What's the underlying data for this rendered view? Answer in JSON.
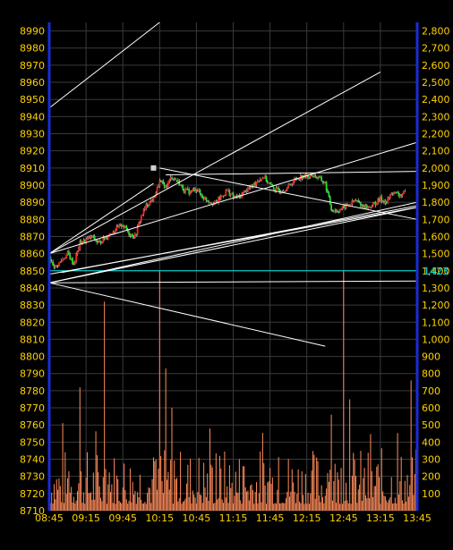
{
  "chart_data": {
    "type": "candlestick+bar",
    "title": "",
    "x_ticks": [
      "08:45",
      "09:15",
      "09:45",
      "10:15",
      "10:45",
      "11:15",
      "11:45",
      "12:15",
      "12:45",
      "13:15",
      "13:45"
    ],
    "price_axis": {
      "ylim": [
        8710,
        8995
      ],
      "ticks": [
        8710,
        8720,
        8730,
        8740,
        8750,
        8760,
        8770,
        8780,
        8790,
        8800,
        8810,
        8820,
        8830,
        8840,
        8850,
        8860,
        8870,
        8880,
        8890,
        8900,
        8910,
        8920,
        8930,
        8940,
        8950,
        8960,
        8970,
        8980,
        8990
      ]
    },
    "volume_axis": {
      "ylim": [
        0,
        2850
      ],
      "ticks": [
        "100",
        "200",
        "300",
        "400",
        "500",
        "600",
        "700",
        "800",
        "900",
        "1,000",
        "1,100",
        "1,200",
        "1,300",
        "1,400",
        "1,500",
        "1,600",
        "1,700",
        "1,800",
        "1,900",
        "2,000",
        "2,100",
        "2,200",
        "2,300",
        "2,400",
        "2,500",
        "2,600",
        "2,700",
        "2,800"
      ]
    },
    "reference_line": {
      "value": 8850,
      "label": "1423",
      "color": "#00e5e5"
    },
    "price_path": [
      [
        "08:45",
        8857
      ],
      [
        "08:50",
        8852
      ],
      [
        "09:00",
        8860
      ],
      [
        "09:05",
        8854
      ],
      [
        "09:10",
        8866
      ],
      [
        "09:20",
        8870
      ],
      [
        "09:25",
        8866
      ],
      [
        "09:35",
        8872
      ],
      [
        "09:45",
        8877
      ],
      [
        "09:50",
        8872
      ],
      [
        "09:55",
        8870
      ],
      [
        "10:00",
        8882
      ],
      [
        "10:05",
        8889
      ],
      [
        "10:10",
        8892
      ],
      [
        "10:15",
        8902
      ],
      [
        "10:20",
        8899
      ],
      [
        "10:25",
        8905
      ],
      [
        "10:30",
        8902
      ],
      [
        "10:35",
        8897
      ],
      [
        "10:40",
        8896
      ],
      [
        "10:45",
        8898
      ],
      [
        "10:50",
        8893
      ],
      [
        "10:55",
        8891
      ],
      [
        "11:00",
        8889
      ],
      [
        "11:05",
        8893
      ],
      [
        "11:10",
        8897
      ],
      [
        "11:15",
        8893
      ],
      [
        "11:20",
        8893
      ],
      [
        "11:25",
        8897
      ],
      [
        "11:30",
        8899
      ],
      [
        "11:35",
        8903
      ],
      [
        "11:40",
        8905
      ],
      [
        "11:45",
        8900
      ],
      [
        "11:50",
        8897
      ],
      [
        "11:55",
        8897
      ],
      [
        "12:00",
        8899
      ],
      [
        "12:05",
        8903
      ],
      [
        "12:10",
        8905
      ],
      [
        "12:15",
        8905
      ],
      [
        "12:20",
        8906
      ],
      [
        "12:25",
        8904
      ],
      [
        "12:30",
        8901
      ],
      [
        "12:35",
        8886
      ],
      [
        "12:40",
        8885
      ],
      [
        "12:45",
        8887
      ],
      [
        "12:50",
        8889
      ],
      [
        "12:55",
        8891
      ],
      [
        "13:00",
        8888
      ],
      [
        "13:05",
        8887
      ],
      [
        "13:10",
        8889
      ],
      [
        "13:15",
        8892
      ],
      [
        "13:20",
        8890
      ],
      [
        "13:25",
        8896
      ],
      [
        "13:30",
        8894
      ],
      [
        "13:35",
        8895
      ]
    ],
    "volume_spikes": [
      {
        "time": "09:30",
        "value": 1220
      },
      {
        "time": "10:15",
        "value": 1400
      },
      {
        "time": "12:45",
        "value": 1400
      },
      {
        "time": "09:10",
        "value": 720
      },
      {
        "time": "10:20",
        "value": 830
      },
      {
        "time": "12:50",
        "value": 650
      },
      {
        "time": "13:40",
        "value": 760
      },
      {
        "time": "10:25",
        "value": 600
      },
      {
        "time": "12:35",
        "value": 560
      }
    ],
    "trend_lines": [
      {
        "from": [
          "08:45",
          8945
        ],
        "to": [
          "10:15",
          8995
        ]
      },
      {
        "from": [
          "08:45",
          8860
        ],
        "to": [
          "13:15",
          8966
        ]
      },
      {
        "from": [
          "08:45",
          8860
        ],
        "to": [
          "13:45",
          8925
        ]
      },
      {
        "from": [
          "08:45",
          8843
        ],
        "to": [
          "13:45",
          8890
        ]
      },
      {
        "from": [
          "08:45",
          8843
        ],
        "to": [
          "13:45",
          8887
        ]
      },
      {
        "from": [
          "08:45",
          8843
        ],
        "to": [
          "12:30",
          8806
        ]
      },
      {
        "from": [
          "08:45",
          8843
        ],
        "to": [
          "13:45",
          8844
        ]
      },
      {
        "from": [
          "08:45",
          8848
        ],
        "to": [
          "13:45",
          8887
        ]
      },
      {
        "from": [
          "10:15",
          8910
        ],
        "to": [
          "13:45",
          8880
        ]
      },
      {
        "from": [
          "10:20",
          8906
        ],
        "to": [
          "13:45",
          8908
        ]
      },
      {
        "from": [
          "08:45",
          8860
        ],
        "to": [
          "10:10",
          8901
        ]
      },
      {
        "from": [
          "08:55",
          8849
        ],
        "to": [
          "13:45",
          8888
        ]
      }
    ],
    "marker": {
      "time": "10:10",
      "value": 8910
    },
    "colors": {
      "up": "#ff2020",
      "down": "#20e020",
      "volume": "#ff8c5a",
      "grid": "#3a3a3a",
      "axis": "#1a2bd6",
      "labels": "#ffd200"
    }
  }
}
